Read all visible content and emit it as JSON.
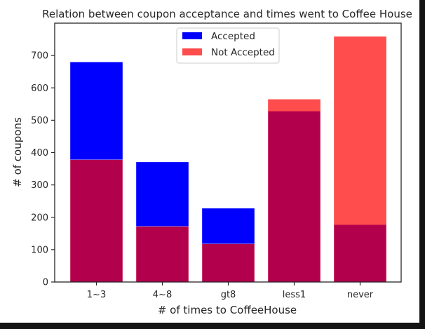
{
  "chart_data": {
    "type": "bar",
    "stacking": "overlay",
    "title": "Relation between coupon acceptance and times went to Coffee House",
    "xlabel": "# of times to CoffeeHouse",
    "ylabel": "# of coupons",
    "categories": [
      "1~3",
      "4~8",
      "gt8",
      "less1",
      "never"
    ],
    "ylim": [
      0,
      800
    ],
    "yticks": [
      0,
      100,
      200,
      300,
      400,
      500,
      600,
      700
    ],
    "grid": false,
    "legend": "upper center",
    "series": [
      {
        "name": "Accepted",
        "values": [
          680,
          371,
          228,
          528,
          177
        ],
        "color": "#0000ff",
        "alpha": 1.0
      },
      {
        "name": "Not Accepted",
        "values": [
          378,
          172,
          118,
          565,
          759
        ],
        "color": "#ff0000",
        "alpha": 0.7
      }
    ]
  }
}
